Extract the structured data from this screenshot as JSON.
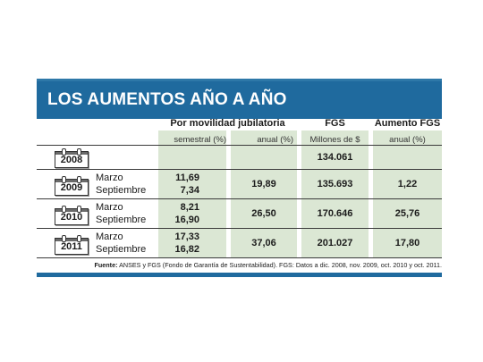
{
  "title": "LOS AUMENTOS AÑO A AÑO",
  "headers": {
    "movilidad": "Por movilidad jubilatoria",
    "fgs": "FGS",
    "aumento_fgs": "Aumento FGS",
    "semestral": "semestral (%)",
    "anual": "anual (%)",
    "millones": "Millones de $",
    "anual_fgs": "anual (%)"
  },
  "rows": [
    {
      "year": "2008",
      "fgs": "134.061"
    },
    {
      "year": "2009",
      "months": [
        "Marzo",
        "Septiembre"
      ],
      "semestral": [
        "11,69",
        "7,34"
      ],
      "anual": "19,89",
      "fgs": "135.693",
      "aumento": "1,22"
    },
    {
      "year": "2010",
      "months": [
        "Marzo",
        "Septiembre"
      ],
      "semestral": [
        "8,21",
        "16,90"
      ],
      "anual": "26,50",
      "fgs": "170.646",
      "aumento": "25,76"
    },
    {
      "year": "2011",
      "months": [
        "Marzo",
        "Septiembre"
      ],
      "semestral": [
        "17,33",
        "16,82"
      ],
      "anual": "37,06",
      "fgs": "201.027",
      "aumento": "17,80"
    }
  ],
  "footer": {
    "label": "Fuente:",
    "text": "ANSES y FGS (Fondo de Garantía de Sustentabilidad). FGS: Datos a dic. 2008, nov. 2009, oct. 2010 y oct. 2011."
  },
  "colors": {
    "header_bar": "#1f6a9e",
    "cell_fill": "#dbe7d4"
  }
}
